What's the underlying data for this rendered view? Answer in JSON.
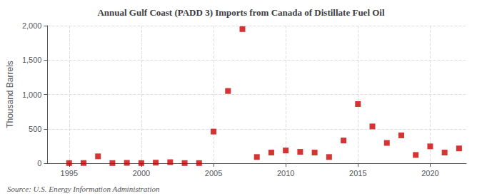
{
  "chart_data": {
    "type": "scatter",
    "title": "Annual Gulf Coast (PADD 3) Imports from Canada of Distillate Fuel Oil",
    "ylabel": "Thousand Barrels",
    "annotation": "Source: U.S. Energy Information Administration",
    "color": "#cc0000",
    "marker": "square",
    "x": [
      1995,
      1996,
      1997,
      1998,
      1999,
      2000,
      2001,
      2002,
      2003,
      2004,
      2005,
      2006,
      2007,
      2008,
      2009,
      2010,
      2011,
      2012,
      2013,
      2014,
      2015,
      2016,
      2017,
      2018,
      2019,
      2020,
      2021,
      2022
    ],
    "values": [
      2,
      3,
      100,
      2,
      5,
      2,
      8,
      15,
      2,
      2,
      460,
      1050,
      1950,
      90,
      155,
      185,
      165,
      155,
      90,
      330,
      860,
      535,
      295,
      405,
      120,
      245,
      155,
      215
    ],
    "xlim": [
      1993.5,
      2022.5
    ],
    "xticks": [
      1995,
      2000,
      2005,
      2010,
      2015,
      2020
    ],
    "ylim": [
      0,
      2000
    ],
    "yticks": [
      0,
      500,
      {
        "value": 1000,
        "label": "1,000"
      },
      {
        "value": 1500,
        "label": "1,500"
      },
      {
        "value": 2000,
        "label": "2,000"
      }
    ],
    "grid": true
  }
}
